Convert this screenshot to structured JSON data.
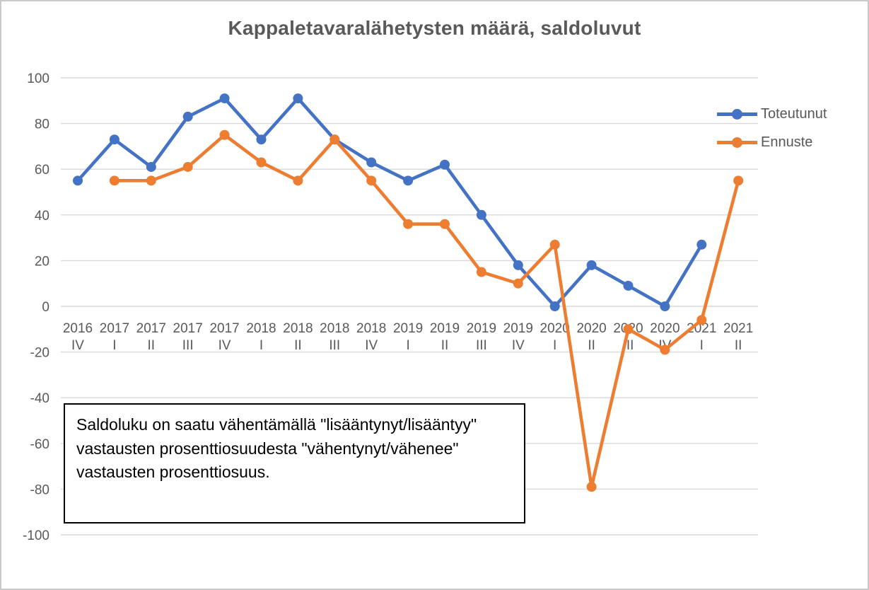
{
  "chart_data": {
    "type": "line",
    "title": "Kappaletavaralähetysten määrä, saldoluvut",
    "xlabel": "",
    "ylabel": "",
    "ylim": [
      -100,
      100
    ],
    "ytick_step": 20,
    "grid": "horizontal-only",
    "legend_position": "right",
    "categories": [
      {
        "year": "2016",
        "quarter": "IV"
      },
      {
        "year": "2017",
        "quarter": "I"
      },
      {
        "year": "2017",
        "quarter": "II"
      },
      {
        "year": "2017",
        "quarter": "III"
      },
      {
        "year": "2017",
        "quarter": "IV"
      },
      {
        "year": "2018",
        "quarter": "I"
      },
      {
        "year": "2018",
        "quarter": "II"
      },
      {
        "year": "2018",
        "quarter": "III"
      },
      {
        "year": "2018",
        "quarter": "IV"
      },
      {
        "year": "2019",
        "quarter": "I"
      },
      {
        "year": "2019",
        "quarter": "II"
      },
      {
        "year": "2019",
        "quarter": "III"
      },
      {
        "year": "2019",
        "quarter": "IV"
      },
      {
        "year": "2020",
        "quarter": "I"
      },
      {
        "year": "2020",
        "quarter": "II"
      },
      {
        "year": "2020",
        "quarter": "III"
      },
      {
        "year": "2020",
        "quarter": "IV"
      },
      {
        "year": "2021",
        "quarter": "I"
      },
      {
        "year": "2021",
        "quarter": "II"
      }
    ],
    "series": [
      {
        "name": "Toteutunut",
        "color": "#4472C4",
        "values": [
          55,
          73,
          61,
          83,
          91,
          73,
          91,
          73,
          63,
          55,
          62,
          40,
          18,
          0,
          18,
          9,
          0,
          27,
          null
        ]
      },
      {
        "name": "Ennuste",
        "color": "#ED7D31",
        "values": [
          null,
          55,
          55,
          61,
          75,
          63,
          55,
          73,
          55,
          36,
          36,
          15,
          10,
          27,
          -79,
          -10,
          -19,
          -6,
          55
        ]
      }
    ]
  },
  "annotation": {
    "lines": [
      "Saldoluku on saatu vähentämällä \"lisääntynyt/lisääntyy\"",
      "vastausten prosenttiosuudesta \"vähentynyt/vähenee\"",
      "vastausten prosenttiosuus."
    ]
  },
  "colors": {
    "toteutunut": "#4472C4",
    "ennuste": "#ED7D31",
    "gridline": "#D9D9D9",
    "axis_text": "#595959",
    "title_text": "#595959",
    "frame_border": "#C9C9C9",
    "annotation_border": "#000000"
  }
}
